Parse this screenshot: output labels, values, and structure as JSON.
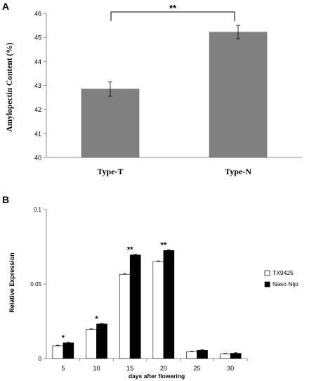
{
  "chart_data": [
    {
      "panel": "A",
      "type": "bar",
      "categories": [
        "Type-T",
        "Type-N"
      ],
      "values": [
        42.85,
        45.22
      ],
      "errors": [
        0.3,
        0.28
      ],
      "ylabel": "Amylopectin Content (%)",
      "ylim": [
        40,
        46
      ],
      "yticks": [
        "40",
        "41",
        "42",
        "43",
        "44",
        "45",
        "46"
      ],
      "significance": {
        "between": [
          "Type-T",
          "Type-N"
        ],
        "label": "**"
      },
      "bar_color": "#808080",
      "grid": false
    },
    {
      "panel": "B",
      "type": "bar",
      "categories": [
        "5",
        "10",
        "15",
        "20",
        "25",
        "30"
      ],
      "series": [
        {
          "name": "TX9425",
          "values": [
            0.0085,
            0.0195,
            0.0565,
            0.065,
            0.0045,
            0.003
          ],
          "errors": [
            0.0004,
            0.0004,
            0.0005,
            0.0005,
            0.0004,
            0.0004
          ],
          "color": "#ffffff"
        },
        {
          "name": "Naso Nijo",
          "values": [
            0.0105,
            0.0232,
            0.0695,
            0.0725,
            0.0055,
            0.0035
          ],
          "errors": [
            0.0004,
            0.0004,
            0.0005,
            0.0005,
            0.0004,
            0.0004
          ],
          "color": "#000000"
        }
      ],
      "significance": [
        "*",
        "*",
        "**",
        "**",
        "",
        ""
      ],
      "xlabel": "days after flowering",
      "ylabel": "Relative Expression",
      "ylim": [
        0,
        0.1
      ],
      "yticks": [
        "0",
        "0.05",
        "0.1"
      ],
      "legend": "right",
      "grid": false
    }
  ]
}
